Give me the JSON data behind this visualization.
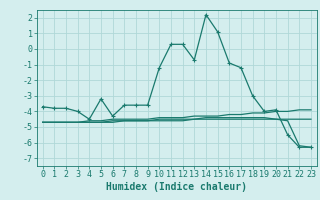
{
  "x": [
    0,
    1,
    2,
    3,
    4,
    5,
    6,
    7,
    8,
    9,
    10,
    11,
    12,
    13,
    14,
    15,
    16,
    17,
    18,
    19,
    20,
    21,
    22,
    23
  ],
  "line1": [
    -3.7,
    -3.8,
    -3.8,
    -4.0,
    -4.5,
    -3.2,
    -4.3,
    -3.6,
    -3.6,
    -3.6,
    -1.2,
    0.3,
    0.3,
    -0.7,
    2.2,
    1.1,
    -0.9,
    -1.2,
    -3.0,
    -4.0,
    -3.9,
    -5.5,
    -6.3,
    -6.3
  ],
  "line2": [
    -4.7,
    -4.7,
    -4.7,
    -4.7,
    -4.6,
    -4.6,
    -4.5,
    -4.5,
    -4.5,
    -4.5,
    -4.4,
    -4.4,
    -4.4,
    -4.3,
    -4.3,
    -4.3,
    -4.2,
    -4.2,
    -4.1,
    -4.1,
    -4.0,
    -4.0,
    -3.9,
    -3.9
  ],
  "line3": [
    -4.7,
    -4.7,
    -4.7,
    -4.7,
    -4.7,
    -4.7,
    -4.6,
    -4.6,
    -4.6,
    -4.6,
    -4.5,
    -4.5,
    -4.5,
    -4.5,
    -4.4,
    -4.4,
    -4.4,
    -4.4,
    -4.4,
    -4.4,
    -4.5,
    -4.6,
    -6.2,
    -6.3
  ],
  "line4": [
    -4.7,
    -4.7,
    -4.7,
    -4.7,
    -4.7,
    -4.7,
    -4.7,
    -4.6,
    -4.6,
    -4.6,
    -4.6,
    -4.6,
    -4.6,
    -4.5,
    -4.5,
    -4.5,
    -4.5,
    -4.5,
    -4.5,
    -4.5,
    -4.5,
    -4.5,
    -4.5,
    -4.5
  ],
  "line_color": "#1a7a6e",
  "bg_color": "#d4eeee",
  "grid_color": "#b0d8d8",
  "xlabel": "Humidex (Indice chaleur)",
  "ylim": [
    -7.5,
    2.5
  ],
  "xlim": [
    -0.5,
    23.5
  ],
  "yticks": [
    -7,
    -6,
    -5,
    -4,
    -3,
    -2,
    -1,
    0,
    1,
    2
  ],
  "xticks": [
    0,
    1,
    2,
    3,
    4,
    5,
    6,
    7,
    8,
    9,
    10,
    11,
    12,
    13,
    14,
    15,
    16,
    17,
    18,
    19,
    20,
    21,
    22,
    23
  ],
  "font_color": "#1a7a6e",
  "tick_fontsize": 6.0,
  "xlabel_fontsize": 7.0
}
